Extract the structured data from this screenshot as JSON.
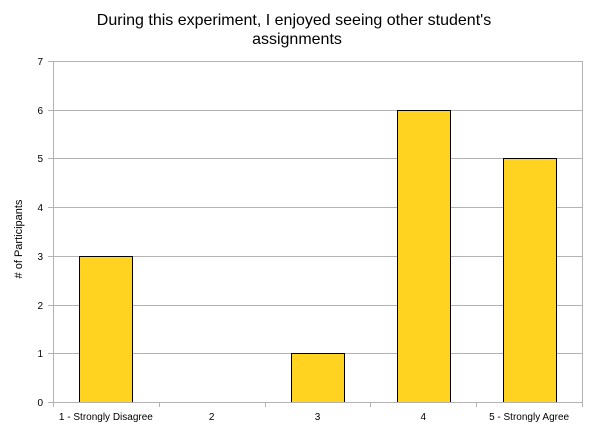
{
  "chart_data": {
    "type": "bar",
    "title": "During this experiment, I enjoyed seeing other student's assignments",
    "title_lines": [
      "During this experiment, I enjoyed seeing other student's",
      "assignments"
    ],
    "xlabel": "",
    "ylabel": "# of Participants",
    "categories": [
      "1 - Strongly Disagree",
      "2",
      "3",
      "4",
      "5 - Strongly Agree"
    ],
    "values": [
      3,
      0,
      1,
      6,
      5
    ],
    "ylim": [
      0,
      7
    ],
    "yticks": [
      0,
      1,
      2,
      3,
      4,
      5,
      6,
      7
    ],
    "grid": true,
    "legend": "none",
    "colors": {
      "bar_fill": "#ffd320",
      "bar_stroke": "#000000",
      "grid": "#b3b3b3",
      "axis": "#b3b3b3"
    }
  }
}
